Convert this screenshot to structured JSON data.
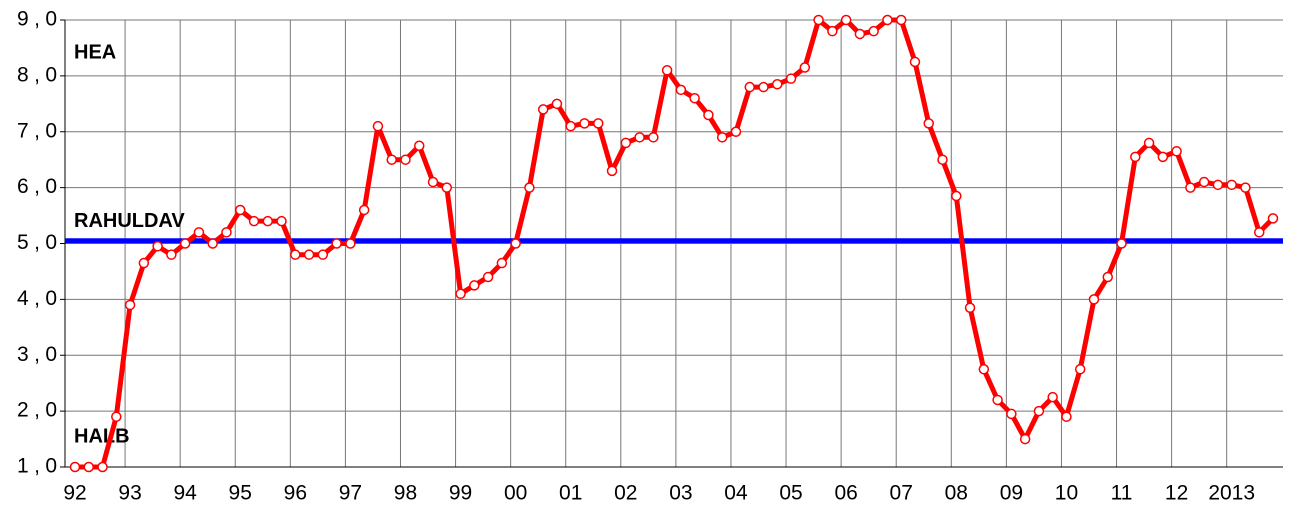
{
  "chart_data": {
    "type": "line",
    "categories": [
      "92",
      null,
      null,
      null,
      "93",
      null,
      null,
      null,
      "94",
      null,
      null,
      null,
      "95",
      null,
      null,
      null,
      "96",
      null,
      null,
      null,
      "97",
      null,
      null,
      null,
      "98",
      null,
      null,
      null,
      "99",
      null,
      null,
      null,
      "00",
      null,
      null,
      null,
      "01",
      null,
      null,
      null,
      "02",
      null,
      null,
      null,
      "03",
      null,
      null,
      null,
      "04",
      null,
      null,
      null,
      "05",
      null,
      null,
      null,
      "06",
      null,
      null,
      null,
      "07",
      null,
      null,
      null,
      "08",
      null,
      null,
      null,
      "09",
      null,
      null,
      null,
      "10",
      null,
      null,
      null,
      "11",
      null,
      null,
      null,
      "12",
      null,
      null,
      null,
      "2013",
      null,
      null,
      null
    ],
    "series": [
      {
        "color": "#ff0000",
        "values": [
          1.0,
          1.0,
          1.0,
          1.9,
          3.9,
          4.65,
          4.95,
          4.8,
          5.0,
          5.2,
          5.0,
          5.2,
          5.6,
          5.4,
          5.4,
          5.4,
          4.8,
          4.8,
          4.8,
          5.0,
          5.0,
          5.6,
          7.1,
          6.5,
          6.5,
          6.75,
          6.1,
          6.0,
          4.1,
          4.25,
          4.4,
          4.65,
          5.0,
          6.0,
          7.4,
          7.5,
          7.1,
          7.15,
          7.15,
          6.3,
          6.8,
          6.9,
          6.9,
          8.1,
          7.75,
          7.6,
          7.3,
          6.9,
          7.0,
          7.8,
          7.8,
          7.85,
          7.95,
          8.15,
          9.0,
          8.8,
          9.0,
          8.75,
          8.8,
          9.0,
          9.0,
          8.25,
          7.15,
          6.5,
          5.85,
          3.85,
          2.75,
          2.2,
          1.95,
          1.5,
          2.0,
          2.25,
          1.9,
          2.75,
          4.0,
          4.4,
          5.0,
          6.55,
          6.8,
          6.55,
          6.65,
          6.0,
          6.1,
          6.05,
          6.05,
          6.0,
          5.2,
          5.45
        ]
      }
    ],
    "ylim": [
      1,
      9
    ],
    "yticks": [
      {
        "value": 1,
        "label": "1,0"
      },
      {
        "value": 2,
        "label": "2,0"
      },
      {
        "value": 3,
        "label": "3,0"
      },
      {
        "value": 4,
        "label": "4,0"
      },
      {
        "value": 5,
        "label": "5,0"
      },
      {
        "value": 6,
        "label": "6,0"
      },
      {
        "value": 7,
        "label": "7,0"
      },
      {
        "value": 8,
        "label": "8,0"
      },
      {
        "value": 9,
        "label": "9,0"
      }
    ],
    "grid": true,
    "reference_line": {
      "value": 5.05,
      "color": "#0000ff",
      "label": "RAHULDAV"
    },
    "annotations": [
      "HEA",
      "HALB"
    ]
  }
}
